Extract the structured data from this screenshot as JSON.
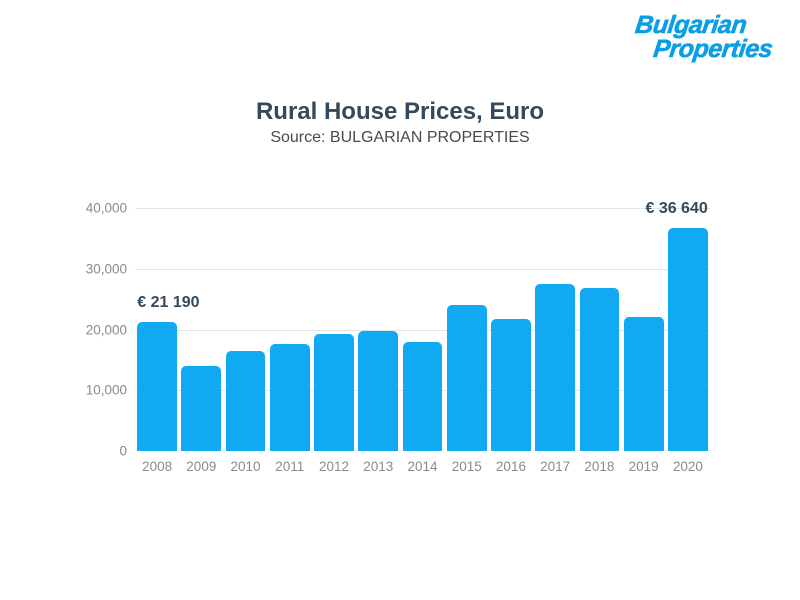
{
  "logo": {
    "line1": "Bulgarian",
    "line2": "Properties",
    "color": "#0a9ee6"
  },
  "header": {
    "title": "Rural House Prices, Euro",
    "subtitle": "Source: BULGARIAN PROPERTIES"
  },
  "chart_data": {
    "type": "bar",
    "title": "Rural House Prices, Euro",
    "source": "BULGARIAN PROPERTIES",
    "categories": [
      "2008",
      "2009",
      "2010",
      "2011",
      "2012",
      "2013",
      "2014",
      "2015",
      "2016",
      "2017",
      "2018",
      "2019",
      "2020"
    ],
    "values": [
      21190,
      14000,
      16500,
      17600,
      19300,
      19700,
      18000,
      24100,
      21800,
      27500,
      26900,
      22000,
      36640
    ],
    "ylim": [
      0,
      40000
    ],
    "yticks": [
      0,
      10000,
      20000,
      30000,
      40000
    ],
    "ytick_labels": [
      "0",
      "10,000",
      "20,000",
      "30,000",
      "40,000"
    ],
    "grid": "horizontal",
    "legend": "none",
    "annotations": [
      {
        "category": "2008",
        "text": "€ 21 190",
        "align": "left"
      },
      {
        "category": "2020",
        "text": "€ 36 640",
        "align": "right"
      }
    ],
    "colors": {
      "bar": "#11a9f2",
      "grid": "#e3e3e3",
      "axis_text": "#8b8b85",
      "annotation_text": "#35495c",
      "title_text": "#35495c",
      "subtitle_text": "#4a4a4a"
    }
  }
}
